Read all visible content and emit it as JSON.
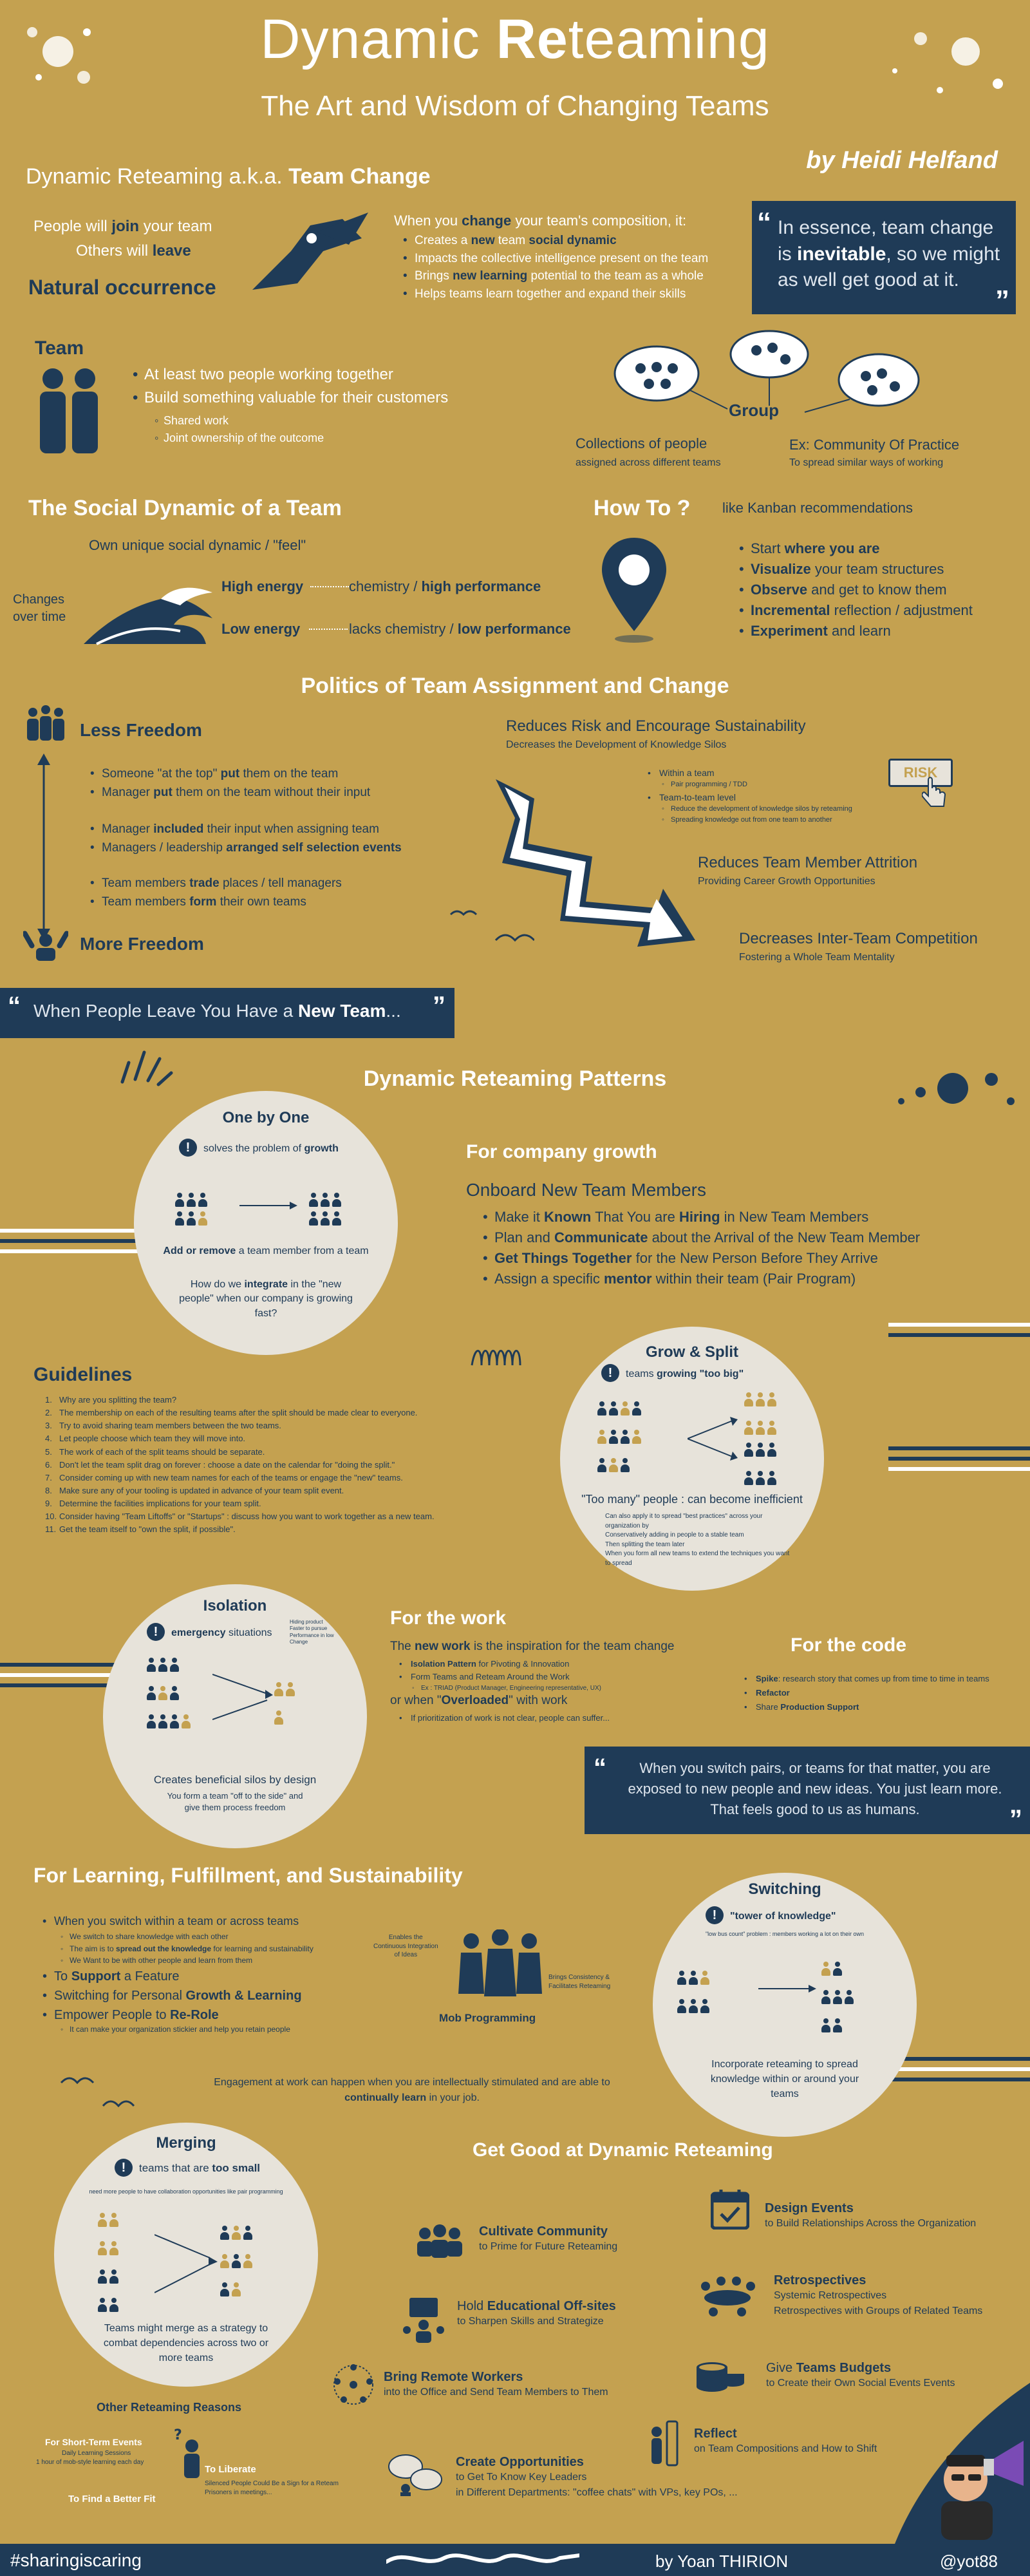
{
  "header": {
    "title_pre": "Dynamic ",
    "title_bold": "Re",
    "title_post": "teaming",
    "subtitle": "The Art and Wisdom of Changing Teams",
    "author": "by Heidi Helfand"
  },
  "team_change": {
    "heading_pre": "Dynamic Reteaming a.k.a. ",
    "heading_bold": "Team Change",
    "join_pre": "People will ",
    "join_bold": "join",
    "join_post": " your team",
    "leave_pre": "Others will ",
    "leave_bold": "leave",
    "natural": "Natural occurrence",
    "when_pre": "When you ",
    "when_bold": "change",
    "when_post": " your team's composition, it:",
    "items": [
      {
        "pre": "Creates a ",
        "bold": "new",
        "mid": " team ",
        "bold2": "social dynamic",
        "post": ""
      },
      {
        "pre": "Impacts the collective intelligence present on the team",
        "bold": "",
        "mid": "",
        "bold2": "",
        "post": ""
      },
      {
        "pre": "Brings ",
        "bold": "new learning",
        "mid": " potential to the team as a whole",
        "bold2": "",
        "post": ""
      },
      {
        "pre": "Helps teams learn together and expand their skills",
        "bold": "",
        "mid": "",
        "bold2": "",
        "post": ""
      }
    ],
    "quote_pre": "In essence, team change is ",
    "quote_bold": "inevitable",
    "quote_post": ", so we might as well get good at it."
  },
  "team": {
    "title": "Team",
    "items": [
      "At least two people working together",
      "Build something valuable for their customers"
    ],
    "sub_items": [
      "Shared work",
      "Joint ownership of the outcome"
    ],
    "group_label": "Group",
    "collections": "Collections of people",
    "collections_sub": "assigned across different teams",
    "community": "Ex: Community Of Practice",
    "community_sub": "To spread similar ways of working"
  },
  "social": {
    "title": "The Social Dynamic of a Team",
    "own": "Own unique social dynamic / \"feel\"",
    "changes": "Changes\nover time",
    "high_energy": "High energy",
    "high_pre": "chemistry / ",
    "high_bold": "high performance",
    "low_energy": "Low energy",
    "low_pre": "lacks chemistry / ",
    "low_bold": "low performance"
  },
  "howto": {
    "title": "How To ?",
    "kanban": "like Kanban recommendations",
    "items": [
      {
        "pre": "Start ",
        "bold": "where you are",
        "post": ""
      },
      {
        "pre": "",
        "bold": "Visualize",
        "post": " your team structures"
      },
      {
        "pre": "",
        "bold": "Observe",
        "post": " and get to know them"
      },
      {
        "pre": "",
        "bold": "Incremental",
        "post": " reflection / adjustment"
      },
      {
        "pre": "",
        "bold": "Experiment",
        "post": " and learn"
      }
    ]
  },
  "politics": {
    "title": "Politics of Team Assignment and Change",
    "less": "Less Freedom",
    "more": "More Freedom",
    "group1": [
      {
        "pre": "Someone \"at the top\" ",
        "bold": "put",
        "post": " them on the team"
      },
      {
        "pre": "Manager ",
        "bold": "put",
        "post": " them on the team without their input"
      }
    ],
    "group2": [
      {
        "pre": "Manager ",
        "bold": "included",
        "post": " their input when assigning team"
      },
      {
        "pre": "Managers / leadership ",
        "bold": "arranged self selection events",
        "post": ""
      }
    ],
    "group3": [
      {
        "pre": "Team members ",
        "bold": "trade",
        "post": " places / tell managers"
      },
      {
        "pre": "Team members ",
        "bold": "form",
        "post": " their own teams"
      }
    ],
    "risk_title": "Reduces Risk and Encourage Sustainability",
    "risk_sub": "Decreases the Development of Knowledge Silos",
    "within": "Within a team",
    "within_sub": "Pair programming / TDD",
    "t2t": "Team-to-team level",
    "t2t_sub1": "Reduce the development of knowledge silos by reteaming",
    "t2t_sub2": "Spreading knowledge out from one team to another",
    "risk_label": "RISK",
    "attrition": "Reduces Team Member Attrition",
    "attrition_sub": "Providing Career Growth Opportunities",
    "competition": "Decreases Inter-Team Competition",
    "competition_sub": "Fostering a Whole Team Mentality"
  },
  "leave_quote": {
    "pre": "When People Leave You Have a ",
    "bold": "New Team",
    "post": "..."
  },
  "patterns": {
    "title": "Dynamic Reteaming Patterns",
    "one_by_one": {
      "title": "One by One",
      "solves_pre": "solves the problem of ",
      "solves_bold": "growth",
      "add": "Add or remove",
      "add_post": " a team member from a team",
      "how_pre": "How do we ",
      "how_bold": "integrate",
      "how_post": " in the \"new people\" when our company is growing fast?"
    },
    "growth": {
      "title": "For company growth",
      "onboard": "Onboard New Team Members",
      "items": [
        {
          "pre": "Make it ",
          "bold": "Known",
          "mid": " That You are ",
          "bold2": "Hiring",
          "post": " in New Team Members"
        },
        {
          "pre": "Plan and ",
          "bold": "Communicate",
          "mid": " about the Arrival of the New Team Member",
          "bold2": "",
          "post": ""
        },
        {
          "pre": "",
          "bold": "Get Things Together",
          "mid": " for the New Person Before They Arrive",
          "bold2": "",
          "post": ""
        },
        {
          "pre": "Assign a specific ",
          "bold": "mentor",
          "mid": " within their team (Pair Program)",
          "bold2": "",
          "post": ""
        }
      ]
    },
    "guidelines": {
      "title": "Guidelines",
      "items": [
        "Why are you splitting the team?",
        "The membership on each of the resulting teams after the split should be made clear to everyone.",
        "Try to avoid sharing team members between the two teams.",
        "Let people choose which team they will move into.",
        "The work of each of the split teams should be separate.",
        "Don't let the team split drag on forever : choose a date on the calendar for \"doing the split.\"",
        "Consider coming up with new team names for each of the teams or engage the \"new\" teams.",
        "Make sure any of your tooling is updated in advance of your team split event.",
        "Determine the facilities implications for your team split.",
        "Consider having \"Team Liftoffs\" or \"Startups\" : discuss how you want to work together as a new team.",
        "Get the team itself to \"own the split, if possible\"."
      ]
    },
    "grow_split": {
      "title": "Grow & Split",
      "teams_pre": "teams ",
      "teams_bold": "growing \"too big\"",
      "too_many": "\"Too many\" people : can become inefficient",
      "note1": "Can also apply it to spread \"best practices\" across your organization by",
      "note2": "Conservatively adding in people to a stable team",
      "note3": "Then splitting the team later",
      "note4": "When you form all new teams to extend the techniques you want to spread"
    },
    "isolation": {
      "title": "Isolation",
      "emergency": "emergency",
      "emergency_post": " situations",
      "side_note": "Hiding product\nFaster to pursue\nPerformance in low\nChange",
      "silos": "Creates beneficial silos by design",
      "silos_sub": "You form a team \"off to the side\" and give them process freedom"
    },
    "work": {
      "title": "For the work",
      "new_pre": "The ",
      "new_bold": "new work",
      "new_post": " is the inspiration for the team change",
      "items": [
        {
          "bold": "Isolation Pattern",
          "post": " for Pivoting & Innovation"
        },
        {
          "bold": "",
          "post": "Form Teams and Reteam Around the Work"
        }
      ],
      "sub": "Ex : TRIAD (Product Manager, Engineering representative, UX)",
      "overloaded_pre": "or when \"",
      "overloaded_bold": "Overloaded",
      "overloaded_post": "\" with work",
      "prior": "If prioritization of work is not clear, people can suffer..."
    },
    "code": {
      "title": "For the code",
      "items": [
        {
          "bold": "Spike",
          "post": ": research story that comes up from time to time in teams"
        },
        {
          "bold": "Refactor",
          "post": ""
        },
        {
          "pre": "Share ",
          "bold": "Production Support",
          "post": ""
        }
      ]
    },
    "pairs_quote": "When you switch pairs, or teams for that matter, you are exposed to new people and new ideas. You just learn more. That feels good to us as humans."
  },
  "learning": {
    "title": "For Learning, Fulfillment, and Sustainability",
    "items": [
      {
        "pre": "When you switch within a team or across teams",
        "bold": "",
        "post": ""
      }
    ],
    "sub1": "We switch to share knowledge with each other",
    "sub2_pre": "The aim is to ",
    "sub2_bold": "spread out the knowledge",
    "sub2_post": " for learning and sustainability",
    "sub3": "We Want to be with other people and learn from them",
    "support_pre": "To ",
    "support_bold": "Support",
    "support_post": " a Feature",
    "personal_pre": "Switching for Personal ",
    "personal_bold": "Growth & Learning",
    "empower_pre": "Empower People to ",
    "empower_bold": "Re-Role",
    "empower_sub": "It can make your organization stickier and help you retain people",
    "enables": "Enables the\nContinuous Integration\nof Ideas",
    "mob": "Mob Programming",
    "brings": "Brings Consistency &\nFacilitates Reteaming",
    "engagement_pre": "Engagement at work can happen when you are intellectually stimulated and are able to ",
    "engagement_bold": "continually learn",
    "engagement_post": " in your job."
  },
  "switching": {
    "title": "Switching",
    "tower": "\"tower of knowledge\"",
    "bus": "\"low bus count\" problem : members working a lot on their own",
    "incorporate": "Incorporate reteaming to spread knowledge within or around your teams"
  },
  "merging": {
    "title": "Merging",
    "small_pre": "teams that are ",
    "small_bold": "too small",
    "need": "need more people to have collaboration opportunities like pair programming",
    "desc": "Teams might merge as a strategy to combat dependencies across two or more teams",
    "other": "Other Reteaming Reasons",
    "short_term": "For Short-Term Events",
    "short_sub1": "Daily Learning Sessions",
    "short_sub2": "1 hour of mob-style learning each day",
    "better_fit": "To Find a Better Fit",
    "liberate": "To Liberate",
    "liberate_sub": "Silenced People Could Be a Sign for a Reteam Prisoners in meetings..."
  },
  "get_good": {
    "title": "Get Good at Dynamic Reteaming",
    "cultivate": "Cultivate Community",
    "cultivate_sub": "to Prime for Future Reteaming",
    "offsites_pre": "Hold ",
    "offsites_bold": "Educational Off-sites",
    "offsites_sub": "to Sharpen Skills and Strategize",
    "remote": "Bring Remote Workers",
    "remote_sub": "into the Office and Send Team Members to Them",
    "opps": "Create Opportunities",
    "opps_sub1": "to Get To Know Key Leaders",
    "opps_sub2": "in Different Departments: \"coffee chats\" with VPs, key POs, ...",
    "design": "Design Events",
    "design_sub": "to Build Relationships Across the Organization",
    "retro": "Retrospectives",
    "retro_sub1": "Systemic Retrospectives",
    "retro_sub2": "Retrospectives with Groups of Related Teams",
    "budgets_pre": "Give ",
    "budgets_bold": "Teams Budgets",
    "budgets_sub": "to Create their Own Social Events Events",
    "reflect": "Reflect",
    "reflect_sub": "on Team Compositions and How to Shift"
  },
  "footer": {
    "hashtag": "#sharingiscaring",
    "by": "by Yoan THIRION",
    "handle": "@yot88"
  }
}
